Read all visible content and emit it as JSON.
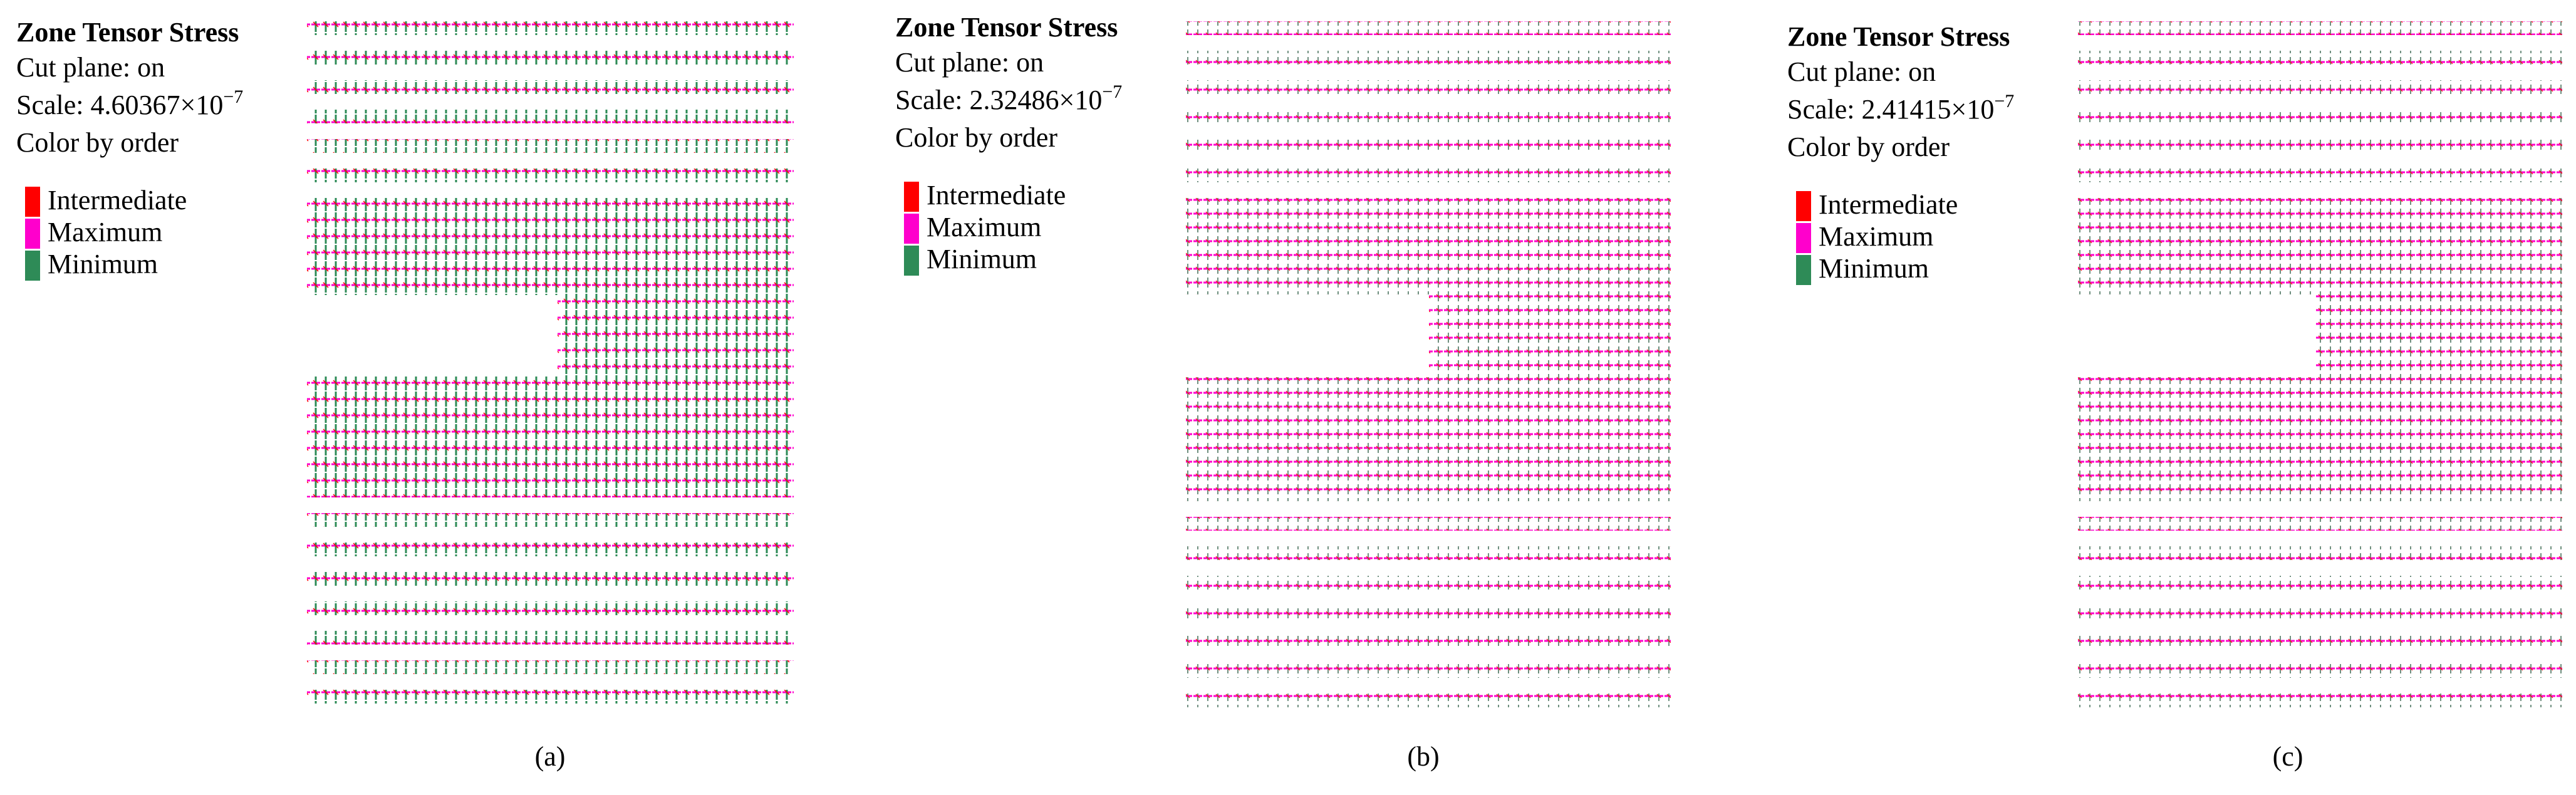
{
  "panels": [
    {
      "title": "Zone Tensor Stress",
      "cut_plane": "Cut plane: on",
      "scale": "Scale: 4.60367×10",
      "scale_exponent": "−7",
      "color_by": "Color by order",
      "legend": [
        {
          "label": "Intermediate",
          "color": "#ff0000"
        },
        {
          "label": "Maximum",
          "color": "#ff00cc"
        },
        {
          "label": "Minimum",
          "color": "#2e8b57"
        }
      ],
      "caption": "(a)"
    },
    {
      "title": "Zone Tensor Stress",
      "cut_plane": "Cut plane: on",
      "scale": "Scale: 2.32486×10",
      "scale_exponent": "−7",
      "color_by": "Color by order",
      "legend": [
        {
          "label": "Intermediate",
          "color": "#ff0000"
        },
        {
          "label": "Maximum",
          "color": "#ff00cc"
        },
        {
          "label": "Minimum",
          "color": "#2e8b57"
        }
      ],
      "caption": "(b)"
    },
    {
      "title": "Zone Tensor Stress",
      "cut_plane": "Cut plane: on",
      "scale": "Scale: 2.41415×10",
      "scale_exponent": "−7",
      "color_by": "Color by order",
      "legend": [
        {
          "label": "Intermediate",
          "color": "#ff0000"
        },
        {
          "label": "Maximum",
          "color": "#ff00cc"
        },
        {
          "label": "Minimum",
          "color": "#2e8b57"
        }
      ],
      "caption": "(c)"
    }
  ]
}
